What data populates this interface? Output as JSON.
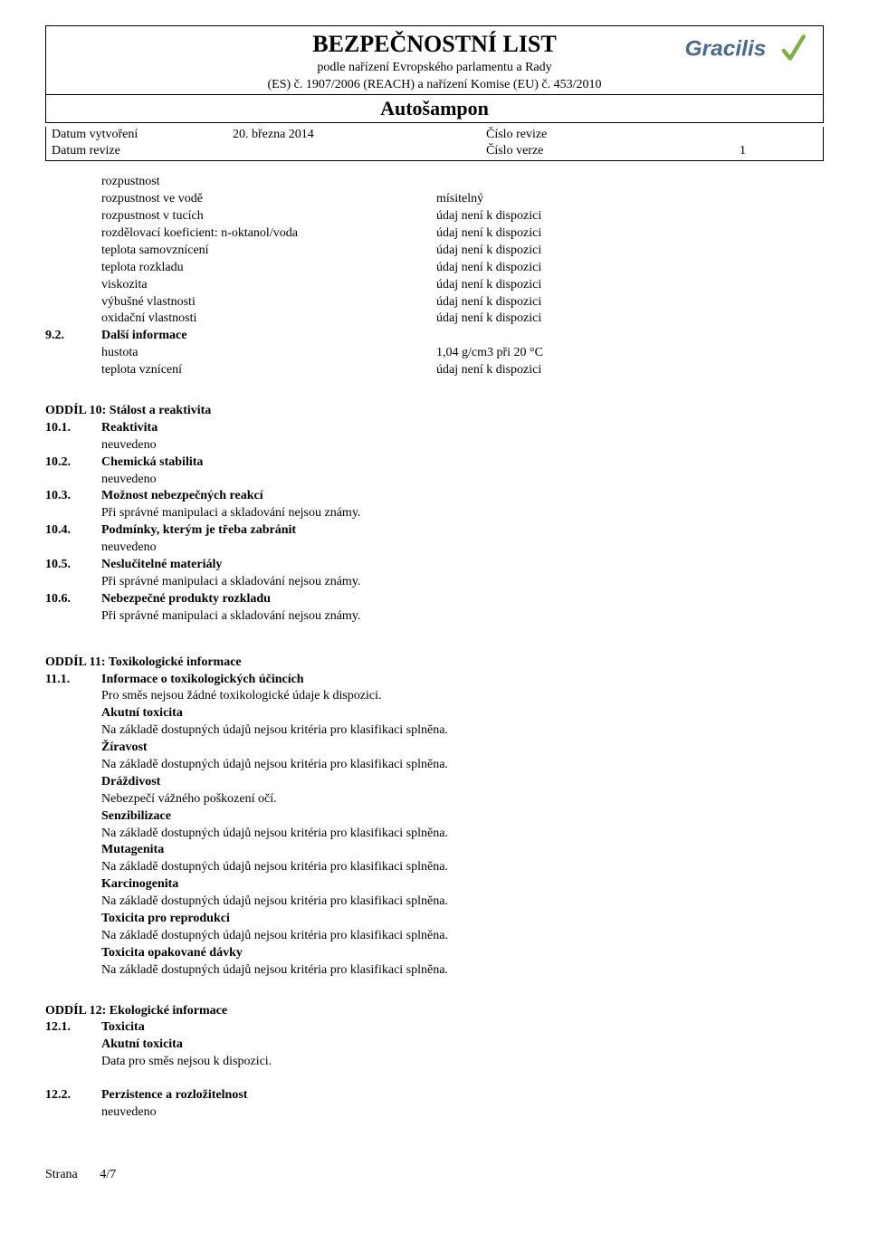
{
  "header": {
    "title": "BEZPEČNOSTNÍ LIST",
    "sub1": "podle nařízení Evropského parlamentu a Rady",
    "sub2": "(ES) č. 1907/2006 (REACH) a nařízení Komise (EU) č. 453/2010",
    "product": "Autošampon",
    "logo_text": "Gracilis",
    "logo_color": "#4a6b8a",
    "logo_check_color": "#7fb043"
  },
  "meta": {
    "created_label": "Datum vytvoření",
    "created_value": "20. března 2014",
    "revision_label": "Datum revize",
    "rev_num_label": "Číslo revize",
    "ver_num_label": "Číslo verze",
    "ver_num_value": "1"
  },
  "props": {
    "rows": [
      {
        "l": "rozpustnost",
        "r": ""
      },
      {
        "l": "rozpustnost ve vodě",
        "r": "mísitelný"
      },
      {
        "l": "rozpustnost v tucích",
        "r": "údaj není k dispozici"
      },
      {
        "l": "rozdělovací koeficient: n-oktanol/voda",
        "r": "údaj není k dispozici"
      },
      {
        "l": "teplota samovznícení",
        "r": "údaj není k dispozici"
      },
      {
        "l": "teplota rozkladu",
        "r": "údaj není k dispozici"
      },
      {
        "l": "viskozita",
        "r": "údaj není k dispozici"
      },
      {
        "l": "výbušné vlastnosti",
        "r": "údaj není k dispozici"
      },
      {
        "l": "oxidační vlastnosti",
        "r": "údaj není k dispozici"
      }
    ]
  },
  "s92": {
    "num": "9.2.",
    "title": "Další informace",
    "rows": [
      {
        "l": "hustota",
        "r": "1,04 g/cm3 při 20 °C"
      },
      {
        "l": "teplota vznícení",
        "r": "údaj není k dispozici"
      }
    ]
  },
  "s10": {
    "title": "ODDÍL 10: Stálost a reaktivita",
    "items": [
      {
        "num": "10.1.",
        "label": "Reaktivita",
        "body": [
          "neuvedeno"
        ]
      },
      {
        "num": "10.2.",
        "label": "Chemická stabilita",
        "body": [
          "neuvedeno"
        ]
      },
      {
        "num": "10.3.",
        "label": "Možnost nebezpečných reakcí",
        "body": [
          "Při správné manipulaci a skladování nejsou známy."
        ]
      },
      {
        "num": "10.4.",
        "label": "Podmínky, kterým je třeba zabránit",
        "body": [
          "neuvedeno"
        ]
      },
      {
        "num": "10.5.",
        "label": "Neslučitelné materiály",
        "body": [
          "Při správné manipulaci a skladování nejsou známy."
        ]
      },
      {
        "num": "10.6.",
        "label": "Nebezpečné produkty rozkladu",
        "body": [
          "Při správné manipulaci a skladování nejsou známy."
        ]
      }
    ]
  },
  "s11": {
    "title": "ODDÍL 11: Toxikologické informace",
    "num": "11.1.",
    "label": "Informace o toxikologických účincích",
    "intro": "Pro směs nejsou žádné toxikologické údaje k dispozici.",
    "blocks": [
      {
        "h": "Akutní toxicita",
        "t": "Na základě dostupných údajů nejsou kritéria pro klasifikaci splněna."
      },
      {
        "h": "Žíravost",
        "t": "Na základě dostupných údajů nejsou kritéria pro klasifikaci splněna."
      },
      {
        "h": "Dráždivost",
        "t": "Nebezpečí vážného poškození očí."
      },
      {
        "h": "Senzibilizace",
        "t": "Na základě dostupných údajů nejsou kritéria pro klasifikaci splněna."
      },
      {
        "h": "Mutagenita",
        "t": "Na základě dostupných údajů nejsou kritéria pro klasifikaci splněna."
      },
      {
        "h": "Karcinogenita",
        "t": "Na základě dostupných údajů nejsou kritéria pro klasifikaci splněna."
      },
      {
        "h": "Toxicita pro reprodukci",
        "t": "Na základě dostupných údajů nejsou kritéria pro klasifikaci splněna."
      },
      {
        "h": "Toxicita opakované dávky",
        "t": "Na základě dostupných údajů nejsou kritéria pro klasifikaci splněna."
      }
    ]
  },
  "s12": {
    "title": "ODDÍL 12: Ekologické informace",
    "i1": {
      "num": "12.1.",
      "label": "Toxicita",
      "h": "Akutní toxicita",
      "t": "Data pro směs nejsou k dispozici."
    },
    "i2": {
      "num": "12.2.",
      "label": "Perzistence a rozložitelnost",
      "t": "neuvedeno"
    }
  },
  "footer": {
    "page_label": "Strana",
    "page_value": "4/7"
  }
}
